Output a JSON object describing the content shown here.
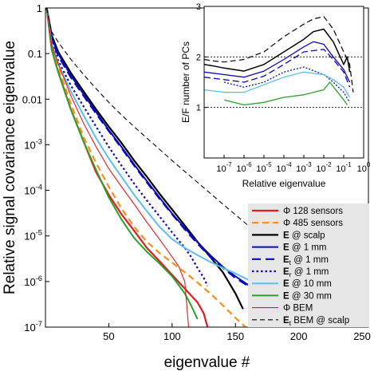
{
  "chart_data": [
    {
      "type": "line",
      "xlabel": "eigenvalue #",
      "ylabel": "Relative signal covariance eigenvalue",
      "xlim": [
        0,
        255
      ],
      "ylim": [
        1e-07,
        1
      ],
      "yscale": "log",
      "grid": false,
      "legend_position": "bottom-right",
      "x_ticks": [
        {
          "value": 50,
          "label": "50"
        },
        {
          "value": 100,
          "label": "100"
        },
        {
          "value": 150,
          "label": "150"
        },
        {
          "value": 200,
          "label": "200"
        },
        {
          "value": 250,
          "label": "250"
        }
      ],
      "y_ticks": [
        {
          "value": 1,
          "label": "1"
        },
        {
          "value": 0.1,
          "label": "0.1"
        },
        {
          "value": 0.01,
          "label": "0.01"
        },
        {
          "value": 0.001,
          "label": "10",
          "sup": "-3"
        },
        {
          "value": 0.0001,
          "label": "10",
          "sup": "-4"
        },
        {
          "value": 1e-05,
          "label": "10",
          "sup": "-5"
        },
        {
          "value": 1e-06,
          "label": "10",
          "sup": "-6"
        },
        {
          "value": 1e-07,
          "label": "10",
          "sup": "-7"
        }
      ],
      "series": [
        {
          "name": "Φ 128 sensors",
          "legend_parts": [
            {
              "t": "Φ 128 sensors",
              "b": false
            }
          ],
          "color": "#e41a1c",
          "dash": "",
          "width": 2.2,
          "x": [
            1,
            5,
            10,
            20,
            30,
            40,
            50,
            60,
            70,
            80,
            90,
            100,
            110,
            120,
            125,
            128
          ],
          "y": [
            1,
            0.12,
            0.04,
            0.006,
            0.0012,
            0.00025,
            8e-05,
            3e-05,
            1.3e-05,
            5.5e-06,
            2.8e-06,
            1.4e-06,
            7e-07,
            3.5e-07,
            2e-07,
            1e-07
          ]
        },
        {
          "name": "Φ 485 sensors",
          "legend_parts": [
            {
              "t": "Φ 485 sensors",
              "b": false
            }
          ],
          "color": "#ff8c1a",
          "dash": "8 5",
          "width": 2.2,
          "x": [
            1,
            5,
            10,
            20,
            30,
            40,
            50,
            60,
            70,
            80,
            90,
            100,
            110,
            120,
            130,
            140,
            150,
            158
          ],
          "y": [
            1,
            0.15,
            0.05,
            0.008,
            0.0015,
            0.0004,
            0.00012,
            4e-05,
            1.6e-05,
            7.5e-06,
            4.2e-06,
            2.6e-06,
            1.6e-06,
            9.5e-07,
            5.5e-07,
            3e-07,
            1.6e-07,
            1e-07
          ]
        },
        {
          "name": "E @ scalp",
          "legend_parts": [
            {
              "t": "E",
              "b": true
            },
            {
              "t": " @ scalp",
              "b": false
            }
          ],
          "color": "#000000",
          "dash": "",
          "width": 2.2,
          "x": [
            1,
            5,
            10,
            20,
            30,
            40,
            50,
            60,
            70,
            80,
            90,
            100,
            110,
            120,
            130,
            140,
            150,
            156
          ],
          "y": [
            1,
            0.25,
            0.11,
            0.038,
            0.015,
            0.006,
            0.0025,
            0.0011,
            0.00045,
            0.0002,
            8.5e-05,
            3.8e-05,
            1.7e-05,
            7.5e-06,
            3.5e-06,
            1.6e-06,
            5.5e-07,
            2.5e-07
          ]
        },
        {
          "name": "E @ 1 mm",
          "legend_parts": [
            {
              "t": "E",
              "b": true
            },
            {
              "t": " @ 1 mm",
              "b": false
            }
          ],
          "color": "#0a0ab8",
          "dash": "",
          "width": 2.0,
          "x": [
            1,
            5,
            10,
            20,
            30,
            40,
            50,
            60,
            70,
            80,
            90,
            100,
            110,
            120,
            130,
            140,
            150,
            160,
            180,
            200,
            220,
            240,
            250
          ],
          "y": [
            1,
            0.22,
            0.1,
            0.033,
            0.013,
            0.0052,
            0.0021,
            0.0009,
            0.00037,
            0.00016,
            7e-05,
            3.1e-05,
            1.5e-05,
            7.3e-06,
            3.8e-06,
            2.1e-06,
            1.3e-06,
            8.5e-07,
            5e-07,
            3.2e-07,
            2e-07,
            1.3e-07,
            1e-07
          ]
        },
        {
          "name": "Et @ 1 mm",
          "legend_parts": [
            {
              "t": "E",
              "b": true
            },
            {
              "t": "t",
              "b": false,
              "sub": true
            },
            {
              "t": " @ 1 mm",
              "b": false
            }
          ],
          "color": "#0a0ab8",
          "dash": "11 6",
          "width": 2.2,
          "x": [
            1,
            5,
            10,
            20,
            30,
            40,
            50,
            60,
            70,
            80,
            90,
            100,
            110,
            120,
            130,
            140,
            150,
            160,
            180,
            200,
            220,
            240,
            255
          ],
          "y": [
            1,
            0.2,
            0.09,
            0.03,
            0.012,
            0.0048,
            0.002,
            0.00085,
            0.00035,
            0.00015,
            6.6e-05,
            3e-05,
            1.4e-05,
            6.8e-06,
            3.5e-06,
            2e-06,
            1.2e-06,
            8e-07,
            4.8e-07,
            3e-07,
            1.9e-07,
            1.2e-07,
            8e-08
          ]
        },
        {
          "name": "Er @ 1 mm",
          "legend_parts": [
            {
              "t": "E",
              "b": true
            },
            {
              "t": "r",
              "b": false,
              "sub": true
            },
            {
              "t": " @ 1 mm",
              "b": false
            }
          ],
          "color": "#0a0ab8",
          "dash": "2.5 3",
          "width": 2.2,
          "x": [
            1,
            5,
            10,
            20,
            30,
            40,
            50,
            60,
            70,
            80,
            90,
            100,
            110,
            115,
            120,
            125,
            128
          ],
          "y": [
            1,
            0.18,
            0.07,
            0.02,
            0.007,
            0.0025,
            0.0009,
            0.00035,
            0.00014,
            6e-05,
            2.7e-05,
            1.2e-05,
            5.5e-06,
            3.5e-06,
            2e-06,
            1.2e-06,
            8e-07
          ]
        },
        {
          "name": "E @ 10 mm",
          "legend_parts": [
            {
              "t": "E",
              "b": true
            },
            {
              "t": " @ 10 mm",
              "b": false
            }
          ],
          "color": "#5bc0eb",
          "dash": "",
          "width": 2.0,
          "x": [
            1,
            5,
            10,
            20,
            30,
            40,
            50,
            60,
            70,
            80,
            90,
            100,
            110,
            120,
            130,
            140,
            150,
            160,
            175,
            190,
            210,
            220
          ],
          "y": [
            1,
            0.16,
            0.06,
            0.015,
            0.0045,
            0.0014,
            0.0005,
            0.0002,
            8e-05,
            3.5e-05,
            1.6e-05,
            8.5e-06,
            5.5e-06,
            3.8e-06,
            2.7e-06,
            2e-06,
            1.5e-06,
            1.1e-06,
            7e-07,
            4.5e-07,
            2e-07,
            1e-07
          ]
        },
        {
          "name": "E @ 30 mm",
          "legend_parts": [
            {
              "t": "E",
              "b": true
            },
            {
              "t": " @ 30 mm",
              "b": false
            }
          ],
          "color": "#2ca02c",
          "dash": "",
          "width": 2.0,
          "x": [
            1,
            5,
            10,
            20,
            30,
            40,
            50,
            60,
            70,
            80,
            90,
            100,
            110,
            115,
            120
          ],
          "y": [
            1,
            0.12,
            0.04,
            0.006,
            0.0012,
            0.00028,
            7e-05,
            2.3e-05,
            9e-06,
            4.5e-06,
            2.5e-06,
            1.3e-06,
            5.5e-07,
            3e-07,
            1.5e-07
          ]
        },
        {
          "name": "Φ BEM",
          "legend_parts": [
            {
              "t": "Φ BEM",
              "b": false
            }
          ],
          "color": "#e41a1c",
          "dash": "",
          "width": 1.1,
          "x": [
            1,
            5,
            10,
            20,
            30,
            40,
            50,
            60,
            70,
            80,
            90,
            100,
            105,
            110,
            113
          ],
          "y": [
            1,
            0.15,
            0.06,
            0.012,
            0.003,
            0.0009,
            0.0003,
            0.00012,
            5e-05,
            2e-05,
            8.5e-06,
            3.5e-06,
            2.2e-06,
            1e-06,
            1e-07
          ]
        },
        {
          "name": "Et BEM @ scalp",
          "legend_parts": [
            {
              "t": "E",
              "b": true
            },
            {
              "t": "t",
              "b": false,
              "sub": true
            },
            {
              "t": " BEM @ scalp",
              "b": false
            }
          ],
          "color": "#000000",
          "dash": "6 4",
          "width": 1.1,
          "x": [
            1,
            5,
            10,
            20,
            30,
            40,
            50,
            60,
            70,
            80,
            90,
            100,
            120,
            140,
            160,
            180,
            200,
            220,
            240,
            250
          ],
          "y": [
            1,
            0.3,
            0.18,
            0.075,
            0.035,
            0.017,
            0.0085,
            0.0045,
            0.0025,
            0.0014,
            0.0008,
            0.00045,
            0.00015,
            5e-05,
            1.7e-05,
            6e-06,
            2.2e-06,
            8e-07,
            3e-07,
            1.8e-07
          ]
        }
      ]
    },
    {
      "type": "line",
      "xlabel": "Relative eigenvalue",
      "ylabel": "E/F number of PCs",
      "xscale": "log",
      "xlim": [
        1e-08,
        1
      ],
      "ylim": [
        0,
        3
      ],
      "grid": false,
      "x_ticks": [
        {
          "value": 1e-07,
          "label": "10",
          "sup": "-7"
        },
        {
          "value": 1e-06,
          "label": "10",
          "sup": "-6"
        },
        {
          "value": 1e-05,
          "label": "10",
          "sup": "-5"
        },
        {
          "value": 0.0001,
          "label": "10",
          "sup": "-4"
        },
        {
          "value": 0.001,
          "label": "10",
          "sup": "-3"
        },
        {
          "value": 0.01,
          "label": "10",
          "sup": "-2"
        },
        {
          "value": 0.1,
          "label": "10",
          "sup": "-1"
        },
        {
          "value": 1,
          "label": "10",
          "sup": "0"
        }
      ],
      "y_ticks": [
        {
          "value": 1,
          "label": "1"
        },
        {
          "value": 2,
          "label": "2"
        },
        {
          "value": 3,
          "label": "3"
        }
      ],
      "reference_lines": [
        1,
        2
      ],
      "series": [
        {
          "color": "#000000",
          "dash": "7 4",
          "width": 1.2,
          "x": [
            1e-08,
            3e-08,
            1e-07,
            1e-06,
            1e-05,
            0.0001,
            0.001,
            0.003,
            0.01,
            0.03,
            0.1,
            0.2,
            0.3
          ],
          "y": [
            1.95,
            1.92,
            1.9,
            1.95,
            2.1,
            2.4,
            2.65,
            2.75,
            2.8,
            2.55,
            2.1,
            1.85,
            1.3
          ]
        },
        {
          "color": "#000000",
          "dash": "",
          "width": 1.5,
          "x": [
            1e-08,
            3e-08,
            1e-07,
            1e-06,
            1e-05,
            0.0001,
            0.001,
            0.003,
            0.01,
            0.03,
            0.1,
            0.15,
            0.2
          ],
          "y": [
            1.85,
            1.82,
            1.78,
            1.72,
            1.85,
            2.1,
            2.35,
            2.5,
            2.55,
            2.3,
            1.85,
            2.0,
            1.7
          ]
        },
        {
          "color": "#0a0ab8",
          "dash": "",
          "width": 1.3,
          "x": [
            1e-08,
            1e-07,
            1e-06,
            1e-05,
            0.0001,
            0.001,
            0.003,
            0.01,
            0.03,
            0.1,
            0.2
          ],
          "y": [
            1.7,
            1.65,
            1.6,
            1.72,
            1.95,
            2.2,
            2.3,
            2.25,
            2.0,
            1.75,
            1.5
          ]
        },
        {
          "color": "#0a0ab8",
          "dash": "8 4",
          "width": 1.3,
          "x": [
            1e-08,
            1e-07,
            1e-06,
            1e-05,
            0.0001,
            0.001,
            0.01,
            0.03,
            0.1,
            0.2
          ],
          "y": [
            1.6,
            1.55,
            1.5,
            1.62,
            1.85,
            2.1,
            2.15,
            1.95,
            1.7,
            1.4
          ]
        },
        {
          "color": "#0a0ab8",
          "dash": "2 2",
          "width": 1.3,
          "x": [
            1e-07,
            1e-06,
            1e-05,
            0.0001,
            0.001,
            0.01,
            0.03,
            0.1,
            0.2
          ],
          "y": [
            1.5,
            1.4,
            1.5,
            1.7,
            1.8,
            1.65,
            1.5,
            1.3,
            1.1
          ]
        },
        {
          "color": "#5bc0eb",
          "dash": "",
          "width": 1.3,
          "x": [
            1e-08,
            1e-07,
            1e-06,
            1e-05,
            0.0001,
            0.001,
            0.01,
            0.03,
            0.1,
            0.2
          ],
          "y": [
            1.35,
            1.3,
            1.3,
            1.45,
            1.6,
            1.7,
            1.65,
            1.55,
            1.4,
            1.2
          ]
        },
        {
          "color": "#2ca02c",
          "dash": "",
          "width": 1.3,
          "x": [
            1e-07,
            1e-06,
            1e-05,
            0.0001,
            0.001,
            0.01,
            0.02,
            0.05,
            0.1,
            0.15
          ],
          "y": [
            1.15,
            1.05,
            1.1,
            1.2,
            1.25,
            1.35,
            1.5,
            1.3,
            1.15,
            1.05
          ]
        }
      ]
    }
  ]
}
